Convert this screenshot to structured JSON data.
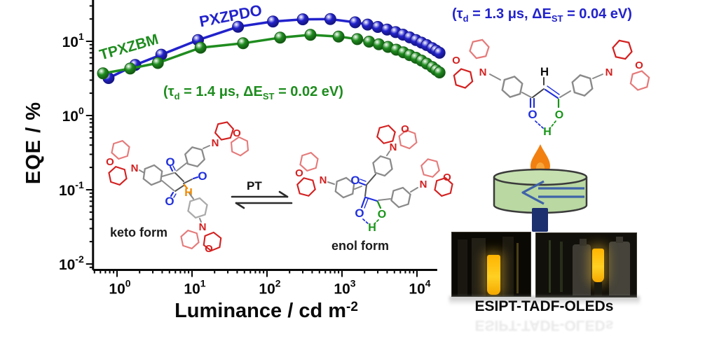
{
  "chart_data": {
    "type": "line",
    "title": "",
    "xlabel_base": "Luminance / cd m",
    "xlabel_sup": "-2",
    "ylabel": "EQE / %",
    "x_scale": "log",
    "y_scale": "log",
    "grid": false,
    "x_tick_exponents": [
      0,
      1,
      2,
      3,
      4
    ],
    "y_tick_exponents": [
      -2,
      -1,
      0,
      1
    ],
    "x_tick_labels": [
      "10⁰",
      "10¹",
      "10²",
      "10³",
      "10⁴"
    ],
    "y_tick_labels": [
      "10⁻²",
      "10⁻¹",
      "10⁰",
      "10¹"
    ],
    "x_range_exponents": [
      -0.32,
      4.27
    ],
    "y_range_exponents": [
      -2.08,
      1.56
    ],
    "series": [
      {
        "name": "PXZPDO",
        "color": "#2222cc",
        "x": [
          0.77,
          1.75,
          3.9,
          12,
          41,
          120,
          300,
          700,
          1500,
          2200,
          3000,
          4000,
          5200,
          6500,
          8000,
          9700,
          11500,
          13500,
          16000,
          18000,
          20000
        ],
        "y": [
          3.2,
          4.8,
          6.6,
          10.4,
          15.7,
          18.5,
          19.8,
          19.9,
          18.0,
          16.8,
          15.6,
          14.4,
          13.3,
          12.3,
          11.3,
          10.4,
          9.6,
          8.9,
          8.1,
          7.5,
          7.0
        ]
      },
      {
        "name": "TPXZBM",
        "color": "#1f8c1f",
        "x": [
          0.65,
          1.5,
          3.5,
          13,
          48,
          150,
          380,
          900,
          1600,
          2300,
          3100,
          4100,
          5300,
          6600,
          8000,
          9700,
          11500,
          13500,
          16000,
          18000,
          20000
        ],
        "y": [
          3.7,
          4.3,
          5.1,
          8.2,
          9.4,
          11.2,
          12.2,
          11.6,
          10.7,
          9.9,
          9.1,
          8.4,
          7.7,
          7.1,
          6.5,
          6.0,
          5.5,
          5.0,
          4.5,
          4.1,
          3.8
        ]
      }
    ],
    "annotations": [
      {
        "series": "TPXZBM",
        "color": "#1e8c1e",
        "pre": "(τ",
        "sub1": "d",
        "mid": " = 1.4 μs, ΔE",
        "sub2": "ST",
        "post": " = 0.02 eV)"
      },
      {
        "series": "PXZPDO",
        "color": "#2222cc",
        "pre": "(τ",
        "sub1": "d",
        "mid": " = 1.3 μs, ΔE",
        "sub2": "ST",
        "post": " = 0.04 eV)"
      }
    ],
    "legend_position": "labels-on-curves"
  },
  "structures": {
    "keto_label": "keto form",
    "enol_label": "enol form",
    "pt_label": "PT",
    "atoms": {
      "O": "O",
      "N": "N",
      "H": "H"
    }
  },
  "device": {
    "caption": "ESIPT-TADF-OLEDs"
  },
  "colors": {
    "series_blue": "#2222cc",
    "series_green": "#1f8c1f",
    "phenoxazine_red": "#d42020",
    "phenoxazine_light_red": "#e57a7a",
    "phenyl_gray": "#8a8a8a",
    "carbonyl_oxygen_blue": "#2130dd",
    "enol_oxygen_green": "#169416",
    "keto_hydrogen_orange": "#f08a00",
    "flame_orange": "#f28011",
    "cylinder_green": "#b9d8a2",
    "stem_navy": "#1c2f6e",
    "oled_yellow": "#ffd023"
  }
}
